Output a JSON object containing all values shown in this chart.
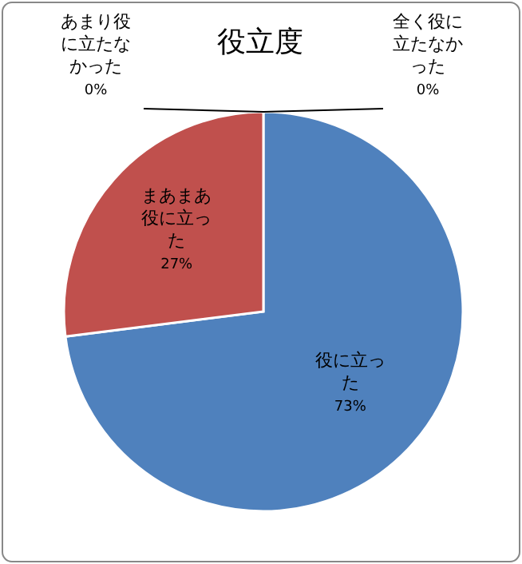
{
  "chart_data": {
    "type": "pie",
    "title": "役立度",
    "categories": [
      "役に立った",
      "まあまあ役に立った",
      "あまり役に立たなかった",
      "全く役に立たなかった"
    ],
    "values": [
      73,
      27,
      0,
      0
    ],
    "colors": [
      "#4f81bd",
      "#c0504d",
      "#9bbb59",
      "#8064a2"
    ],
    "value_labels": [
      "73%",
      "27%",
      "0%",
      "0%"
    ]
  }
}
